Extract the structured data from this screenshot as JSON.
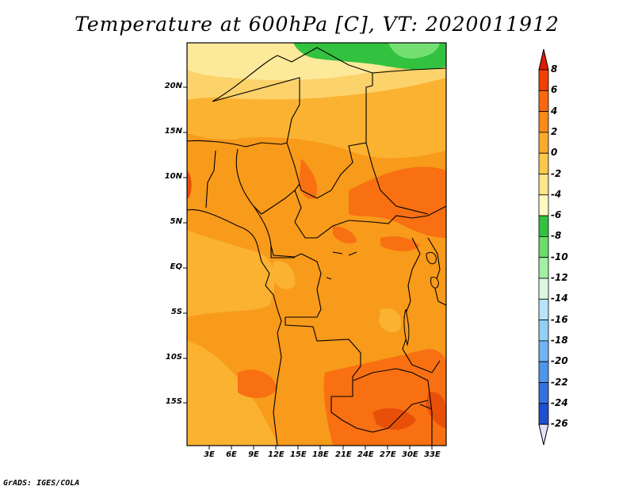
{
  "title": "Temperature at 600hPa [C], VT: 2020011912",
  "credit": "GrADS: IGES/COLA",
  "map": {
    "lat_labels": [
      "20N",
      "15N",
      "10N",
      "5N",
      "EQ",
      "5S",
      "10S",
      "15S"
    ],
    "lon_labels": [
      "3E",
      "6E",
      "9E",
      "12E",
      "15E",
      "18E",
      "21E",
      "24E",
      "27E",
      "30E",
      "33E"
    ]
  },
  "colorbar": {
    "levels": [
      "8",
      "6",
      "4",
      "2",
      "0",
      "-2",
      "-4",
      "-6",
      "-8",
      "-10",
      "-12",
      "-14",
      "-16",
      "-18",
      "-20",
      "-22",
      "-24",
      "-26"
    ],
    "colors": [
      "#e11b00",
      "#f04000",
      "#f86810",
      "#fa8a1a",
      "#fbab2a",
      "#fcc74a",
      "#fde58a",
      "#fff8c0",
      "#33c240",
      "#6cdc6c",
      "#a3efa3",
      "#dbf9e2",
      "#b8e4fb",
      "#94cff5",
      "#72b4f0",
      "#4f95ea",
      "#3572e0",
      "#1e4fd0",
      "#1635b0",
      "#0c1a80",
      "#e2e2fa"
    ]
  },
  "colors": {
    "orange_main": "#f89a1a",
    "orange_dark": "#f87012",
    "orange_light": "#fbb231",
    "yellow": "#fcd26b",
    "pale_yellow": "#fde99a",
    "green": "#33c240",
    "green_light": "#74e074"
  }
}
